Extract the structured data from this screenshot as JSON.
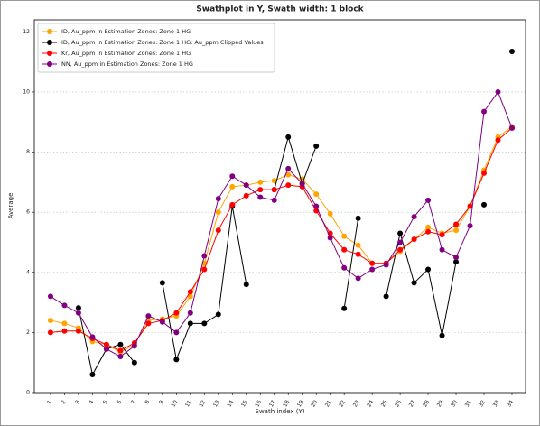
{
  "chart_data": {
    "type": "line",
    "title": "Swathplot in Y, Swath width: 1 block",
    "x_label": "Swath index (Y)",
    "y_label": "Average",
    "x": [
      1,
      2,
      3,
      4,
      5,
      6,
      7,
      8,
      9,
      10,
      11,
      12,
      13,
      14,
      15,
      16,
      17,
      18,
      19,
      20,
      21,
      22,
      23,
      24,
      25,
      26,
      27,
      28,
      29,
      30,
      31,
      32,
      33,
      34
    ],
    "xlim": [
      -0.16,
      34.97
    ],
    "xticks": [
      1,
      2,
      3,
      4,
      5,
      6,
      7,
      8,
      9,
      10,
      11,
      12,
      13,
      14,
      15,
      16,
      17,
      18,
      19,
      20,
      21,
      22,
      23,
      24,
      25,
      26,
      27,
      28,
      29,
      30,
      31,
      32,
      33,
      34
    ],
    "ylim": [
      0,
      12.4
    ],
    "yticks": [
      0,
      2,
      4,
      6,
      8,
      10,
      12
    ],
    "grid": true,
    "legend": "upper left",
    "series": [
      {
        "name": "ID, Au_ppm in Estimation Zones: Zone 1 HG",
        "color": "#ffa500",
        "values": [
          2.4,
          2.3,
          2.15,
          1.7,
          1.6,
          1.35,
          1.6,
          2.4,
          2.45,
          2.55,
          3.2,
          4.3,
          6.0,
          6.85,
          6.9,
          7.0,
          7.05,
          7.25,
          7.1,
          6.6,
          5.95,
          5.2,
          4.9,
          4.3,
          4.3,
          4.7,
          5.1,
          5.5,
          5.3,
          5.4,
          6.2,
          7.4,
          8.5,
          8.85
        ]
      },
      {
        "name": "ID, Au_ppm in Estimation Zones: Zone 1 HG: Au_ppm Clipped Values",
        "color": "#000000",
        "values": [
          null,
          null,
          2.82,
          0.6,
          1.45,
          1.6,
          1.0,
          null,
          3.65,
          1.1,
          2.3,
          2.3,
          2.6,
          6.2,
          3.6,
          null,
          6.75,
          8.5,
          6.95,
          8.2,
          null,
          2.8,
          5.8,
          null,
          3.2,
          5.3,
          3.65,
          4.1,
          1.9,
          4.35,
          null,
          6.25,
          null,
          11.35
        ]
      },
      {
        "name": "Kr, Au_ppm in Estimation Zones: Zone 1 HG",
        "color": "#ff0000",
        "values": [
          2.0,
          2.05,
          2.05,
          1.8,
          1.6,
          1.4,
          1.65,
          2.3,
          2.4,
          2.65,
          3.35,
          4.1,
          5.4,
          6.25,
          6.55,
          6.75,
          6.75,
          6.9,
          6.85,
          6.05,
          5.3,
          4.75,
          4.6,
          4.3,
          4.3,
          4.75,
          5.1,
          5.35,
          5.25,
          5.6,
          6.2,
          7.3,
          8.4,
          8.8
        ]
      },
      {
        "name": "NN, Au_ppm in Estimation Zones: Zone 1 HG",
        "color": "#800080",
        "values": [
          3.2,
          2.9,
          2.65,
          1.85,
          1.45,
          1.2,
          1.55,
          2.55,
          2.35,
          2.0,
          2.65,
          4.55,
          6.45,
          7.2,
          6.9,
          6.5,
          6.4,
          7.45,
          6.95,
          6.2,
          5.15,
          4.15,
          3.8,
          4.1,
          4.25,
          5.0,
          5.85,
          6.4,
          4.75,
          4.5,
          5.55,
          9.35,
          10.0,
          8.8
        ]
      }
    ]
  }
}
